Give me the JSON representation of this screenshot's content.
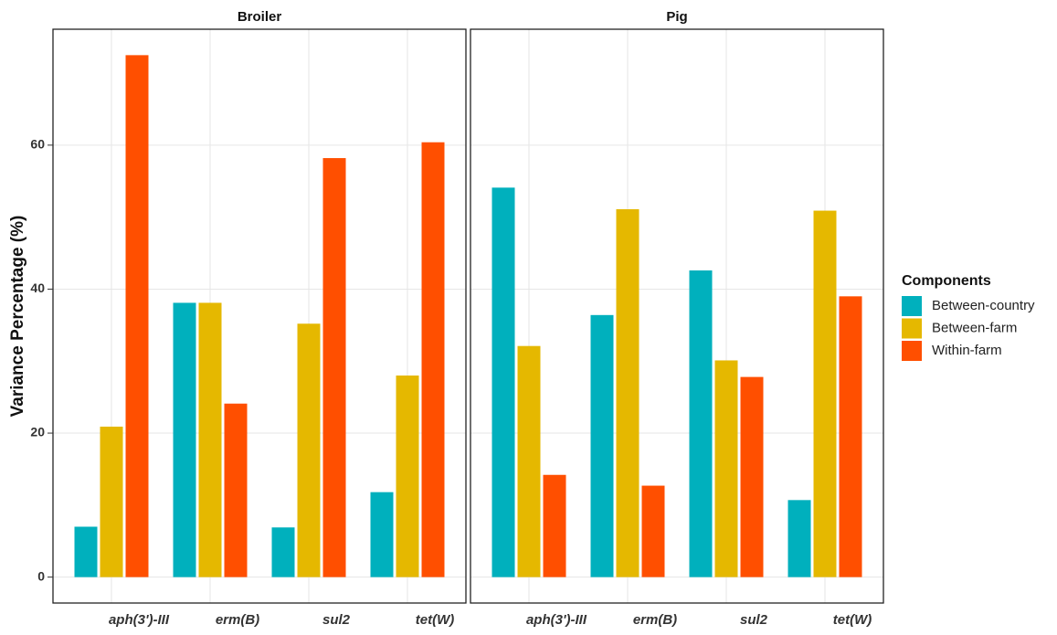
{
  "chart_data": {
    "type": "bar",
    "ylabel": "Variance Percentage (%)",
    "legend_title": "Components",
    "categories": [
      "aph(3')-III",
      "erm(B)",
      "sul2",
      "tet(W)"
    ],
    "series": [
      {
        "name": "Between-country",
        "color": "#00b0bd"
      },
      {
        "name": "Between-farm",
        "color": "#e5b800"
      },
      {
        "name": "Within-farm",
        "color": "#ff4f00"
      }
    ],
    "facets": [
      {
        "title": "Broiler",
        "values": [
          [
            7.0,
            38.1,
            6.9,
            11.8
          ],
          [
            20.9,
            38.1,
            35.2,
            28.0
          ],
          [
            72.5,
            24.1,
            58.2,
            60.4
          ]
        ]
      },
      {
        "title": "Pig",
        "values": [
          [
            54.1,
            36.4,
            42.6,
            10.7
          ],
          [
            32.1,
            51.1,
            30.1,
            50.9
          ],
          [
            14.2,
            12.7,
            27.8,
            39.0
          ]
        ]
      }
    ],
    "ylim": [
      -3.6,
      76.1
    ],
    "yticks": [
      0,
      20,
      40,
      60
    ],
    "grid": true
  }
}
